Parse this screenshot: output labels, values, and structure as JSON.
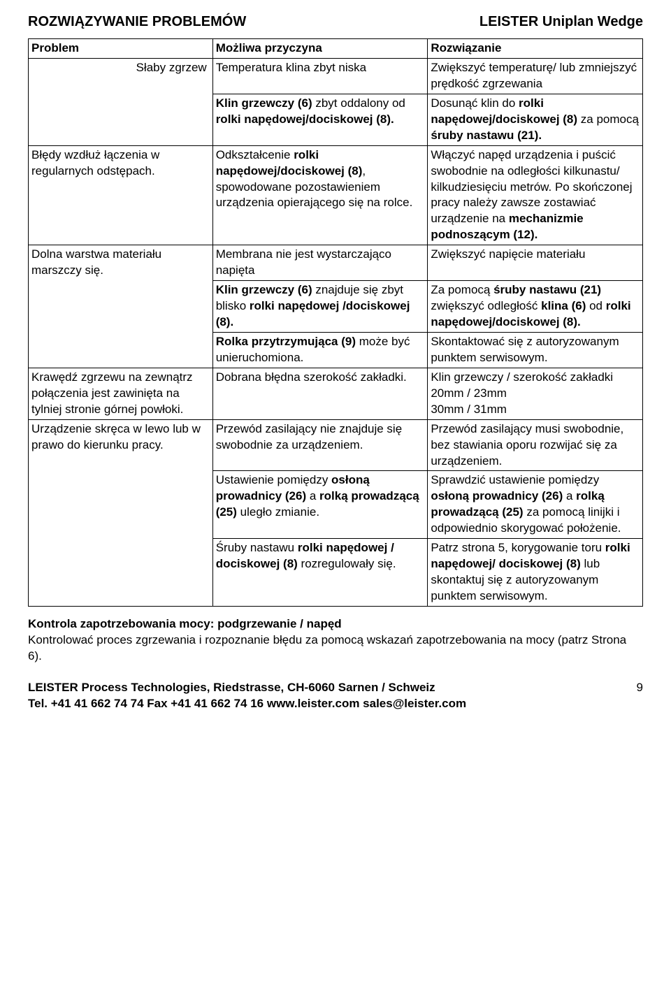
{
  "header": {
    "left": "ROZWIĄZYWANIE PROBLEMÓW",
    "right": "LEISTER Uniplan Wedge"
  },
  "thead": {
    "c1": "Problem",
    "c2": "Możliwa przyczyna",
    "c3": "Rozwiązanie"
  },
  "r1": {
    "c1": "Słaby zgrzew",
    "c2": "Temperatura klina zbyt niska",
    "c3": "Zwiększyć temperaturę/ lub zmniejszyć prędkość zgrzewania"
  },
  "r2": {
    "c2a": "Klin grzewczy (6)",
    "c2b": " zbyt oddalony od ",
    "c2c": "rolki napędowej/dociskowej (8).",
    "c3a": "Dosunąć klin do ",
    "c3b": "rolki napędowej/dociskowej (8)",
    "c3c": " za pomocą ",
    "c3d": "śruby nastawu (21).",
    "c3e": ""
  },
  "r3": {
    "c1": "Błędy wzdłuż łączenia w regularnych odstępach.",
    "c2a": "Odkształcenie ",
    "c2b": "rolki napędowej/dociskowej (8)",
    "c2c": ", spowodowane pozostawieniem urządzenia opierającego się na rolce.",
    "c3a": "Włączyć napęd urządzenia i puścić swobodnie na odległości kilkunastu/ kilkudziesięciu metrów. Po skończonej pracy należy zawsze zostawiać urządzenie na ",
    "c3b": "mechanizmie podnoszącym (12)."
  },
  "r4": {
    "c1": "Dolna warstwa materiału marszczy się.",
    "c2": "Membrana nie jest wystarczająco napięta",
    "c3": "Zwiększyć napięcie materiału"
  },
  "r5": {
    "c2a": "Klin grzewczy (6)",
    "c2b": " znajduje się zbyt blisko ",
    "c2c": "rolki napędowej /dociskowej (8).",
    "c3a": "Za pomocą ",
    "c3b": "śruby nastawu (21)",
    "c3c": " zwiększyć odległość ",
    "c3d": "klina (6)",
    "c3e": " od ",
    "c3f": "rolki napędowej/dociskowej (8)."
  },
  "r6": {
    "c2a": "Rolka przytrzymująca (9)",
    "c2b": " może być unieruchomiona.",
    "c3": "Skontaktować się z autoryzowanym punktem serwisowym."
  },
  "r7": {
    "c1": "Krawędź zgrzewu na zewnątrz połączenia jest zawinięta na tylniej stronie górnej powłoki.",
    "c2": "Dobrana błędna szerokość zakładki.",
    "c3": "Klin grzewczy / szerokość zakładki\n20mm / 23mm\n30mm / 31mm"
  },
  "r8": {
    "c1": "Urządzenie skręca w lewo lub w prawo do kierunku pracy.",
    "c2": "Przewód zasilający nie znajduje się swobodnie za urządzeniem.",
    "c3": "Przewód zasilający musi swobodnie, bez stawiania oporu rozwijać się za urządzeniem."
  },
  "r9": {
    "c2a": "Ustawienie pomiędzy ",
    "c2b": "osłoną prowadnicy  (26)",
    "c2c": " a ",
    "c2d": "rolką prowadzącą (25)",
    "c2e": " uległo zmianie.",
    "c3a": "Sprawdzić ustawienie pomiędzy ",
    "c3b": "osłoną prowadnicy  (26)",
    "c3c": " a ",
    "c3d": "rolką prowadzącą (25)",
    "c3e": " za pomocą linijki i odpowiednio skorygować położenie."
  },
  "r10": {
    "c2a": "Śruby nastawu ",
    "c2b": "rolki napędowej / dociskowej (8)",
    "c2c": " rozregulowały się.",
    "c3a": "Patrz strona 5, korygowanie toru ",
    "c3b": "rolki napędowej/ dociskowej (8)",
    "c3c": " lub skontaktuj się z autoryzowanym punktem serwisowym."
  },
  "section": {
    "title": "Kontrola zapotrzebowania mocy: podgrzewanie / napęd",
    "body": "Kontrolować proces zgrzewania i rozpoznanie błędu za pomocą wskazań zapotrzebowania na mocy (patrz Strona 6)."
  },
  "footer": {
    "line1": "LEISTER Process Technologies, Riedstrasse, CH-6060 Sarnen / Schweiz",
    "page": "9",
    "line2": "Tel. +41 41 662 74 74 Fax +41 41 662 74 16 www.leister.com sales@leister.com"
  }
}
